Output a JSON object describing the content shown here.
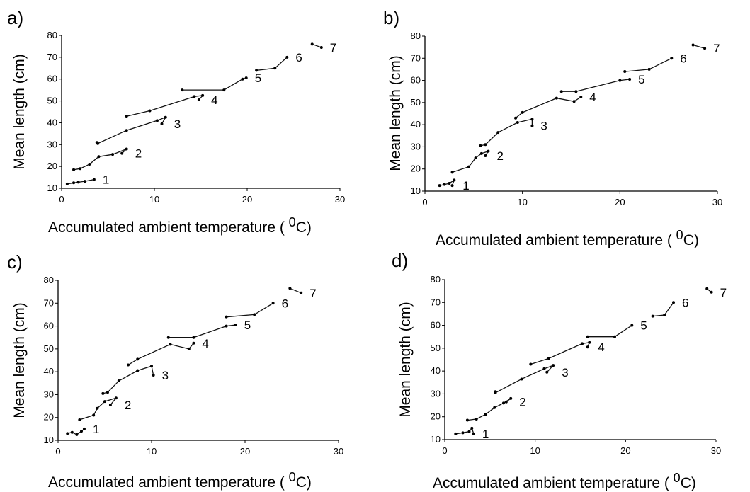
{
  "chart_data": [
    {
      "type": "line",
      "label": "a)",
      "xlabel": "Accumulated ambient temperature",
      "xunit": "0C",
      "ylabel": "Mean length (cm)",
      "xlim": [
        0,
        30
      ],
      "ylim": [
        10,
        80
      ],
      "xticks": [
        0,
        10,
        20,
        30
      ],
      "yticks": [
        10,
        20,
        30,
        40,
        50,
        60,
        70,
        80
      ],
      "series": [
        {
          "name": "1",
          "points": [
            [
              0.6,
              12
            ],
            [
              1.3,
              12.5
            ],
            [
              1.8,
              12.8
            ],
            [
              2.5,
              13.2
            ],
            [
              3.5,
              14
            ]
          ]
        },
        {
          "name": "2",
          "points": [
            [
              1.3,
              18.5
            ],
            [
              2,
              19
            ],
            [
              3,
              21
            ],
            [
              4,
              24.5
            ],
            [
              5.5,
              25.5
            ],
            [
              7,
              28
            ],
            [
              6.5,
              26
            ]
          ]
        },
        {
          "name": "3",
          "points": [
            [
              3.8,
              31
            ],
            [
              3.9,
              30.5
            ],
            [
              7,
              36.5
            ],
            [
              10.3,
              41
            ],
            [
              11.2,
              42.5
            ],
            [
              10.8,
              39.5
            ]
          ]
        },
        {
          "name": "4",
          "points": [
            [
              7,
              43
            ],
            [
              9.5,
              45.5
            ],
            [
              14.3,
              52
            ],
            [
              15.2,
              52.5
            ],
            [
              14.8,
              50.5
            ]
          ]
        },
        {
          "name": "5",
          "points": [
            [
              13,
              55
            ],
            [
              17.5,
              55
            ],
            [
              19.5,
              60
            ],
            [
              19.9,
              60.5
            ]
          ]
        },
        {
          "name": "6",
          "points": [
            [
              21,
              64
            ],
            [
              23,
              65
            ],
            [
              24.3,
              70
            ]
          ]
        },
        {
          "name": "7",
          "points": [
            [
              27,
              76
            ],
            [
              28,
              74.5
            ]
          ]
        }
      ]
    },
    {
      "type": "line",
      "label": "b)",
      "xlabel": "Accumulated ambient temperature",
      "xunit": "0C",
      "ylabel": "Mean length (cm)",
      "xlim": [
        0,
        30
      ],
      "ylim": [
        10,
        80
      ],
      "xticks": [
        0,
        10,
        20,
        30
      ],
      "yticks": [
        10,
        20,
        30,
        40,
        50,
        60,
        70,
        80
      ],
      "series": [
        {
          "name": "1",
          "points": [
            [
              1.5,
              12.5
            ],
            [
              2,
              13
            ],
            [
              2.5,
              13.5
            ],
            [
              3,
              15
            ],
            [
              2.8,
              12.5
            ]
          ]
        },
        {
          "name": "2",
          "points": [
            [
              2.8,
              18.5
            ],
            [
              4.5,
              21
            ],
            [
              5.2,
              25
            ],
            [
              5.8,
              27
            ],
            [
              6.5,
              28
            ],
            [
              6.2,
              26
            ]
          ]
        },
        {
          "name": "3",
          "points": [
            [
              5.7,
              30.5
            ],
            [
              6.2,
              31
            ],
            [
              7.5,
              36.5
            ],
            [
              9.5,
              41
            ],
            [
              11,
              42.5
            ],
            [
              11,
              39.5
            ]
          ]
        },
        {
          "name": "4",
          "points": [
            [
              9.3,
              43
            ],
            [
              10,
              45.5
            ],
            [
              13.5,
              52
            ],
            [
              15.3,
              50.5
            ],
            [
              16,
              52.5
            ]
          ]
        },
        {
          "name": "5",
          "points": [
            [
              14,
              55
            ],
            [
              15.5,
              55
            ],
            [
              20,
              60
            ],
            [
              21,
              60.5
            ]
          ]
        },
        {
          "name": "6",
          "points": [
            [
              20.5,
              64
            ],
            [
              23,
              65
            ],
            [
              25.3,
              70
            ]
          ]
        },
        {
          "name": "7",
          "points": [
            [
              27.5,
              76
            ],
            [
              28.7,
              74.5
            ]
          ]
        }
      ]
    },
    {
      "type": "line",
      "label": "c)",
      "xlabel": "Accumulated ambient temperature",
      "xunit": "0C",
      "ylabel": "Mean length (cm)",
      "xlim": [
        0,
        30
      ],
      "ylim": [
        10,
        80
      ],
      "xticks": [
        0,
        10,
        20,
        30
      ],
      "yticks": [
        10,
        20,
        30,
        40,
        50,
        60,
        70,
        80
      ],
      "series": [
        {
          "name": "1",
          "points": [
            [
              1,
              13
            ],
            [
              1.5,
              13.5
            ],
            [
              2,
              12.5
            ],
            [
              2.5,
              14
            ],
            [
              2.8,
              15
            ]
          ]
        },
        {
          "name": "2",
          "points": [
            [
              2.3,
              19
            ],
            [
              3.8,
              21
            ],
            [
              4.2,
              24
            ],
            [
              5,
              27
            ],
            [
              6.2,
              28.5
            ],
            [
              5.6,
              25.5
            ]
          ]
        },
        {
          "name": "3",
          "points": [
            [
              4.8,
              30.5
            ],
            [
              5.3,
              31
            ],
            [
              6.5,
              36
            ],
            [
              8.5,
              40.5
            ],
            [
              10,
              42.5
            ],
            [
              10.2,
              38.5
            ]
          ]
        },
        {
          "name": "4",
          "points": [
            [
              7.5,
              43
            ],
            [
              8.5,
              45.5
            ],
            [
              12,
              52
            ],
            [
              14,
              50
            ],
            [
              14.5,
              52.5
            ]
          ]
        },
        {
          "name": "5",
          "points": [
            [
              11.8,
              55
            ],
            [
              14.5,
              55
            ],
            [
              18,
              60
            ],
            [
              19,
              60.5
            ]
          ]
        },
        {
          "name": "6",
          "points": [
            [
              18,
              64
            ],
            [
              21,
              65
            ],
            [
              23,
              70
            ]
          ]
        },
        {
          "name": "7",
          "points": [
            [
              24.8,
              76.5
            ],
            [
              26,
              74.5
            ]
          ]
        }
      ]
    },
    {
      "type": "line",
      "label": "d)",
      "xlabel": "Accumulated ambient temperature",
      "xunit": "0C",
      "ylabel": "Mean length (cm)",
      "xlim": [
        0,
        30
      ],
      "ylim": [
        10,
        80
      ],
      "xticks": [
        0,
        10,
        20,
        30
      ],
      "yticks": [
        10,
        20,
        30,
        40,
        50,
        60,
        70,
        80
      ],
      "series": [
        {
          "name": "1",
          "points": [
            [
              1.2,
              12.5
            ],
            [
              2,
              13
            ],
            [
              2.7,
              13.5
            ],
            [
              3,
              15
            ],
            [
              3.2,
              12.5
            ]
          ]
        },
        {
          "name": "2",
          "points": [
            [
              2.5,
              18.5
            ],
            [
              3.5,
              19
            ],
            [
              4.5,
              21
            ],
            [
              5.5,
              24
            ],
            [
              6.5,
              26
            ],
            [
              7.3,
              28
            ],
            [
              6.8,
              26.5
            ]
          ]
        },
        {
          "name": "3",
          "points": [
            [
              5.6,
              31
            ],
            [
              5.6,
              30.5
            ],
            [
              8.5,
              36.5
            ],
            [
              11,
              41
            ],
            [
              12,
              42.5
            ],
            [
              11.3,
              39.5
            ]
          ]
        },
        {
          "name": "4",
          "points": [
            [
              9.5,
              43
            ],
            [
              11.5,
              45.5
            ],
            [
              15.2,
              52
            ],
            [
              16,
              52.5
            ],
            [
              15.8,
              50.5
            ]
          ]
        },
        {
          "name": "5",
          "points": [
            [
              15.8,
              55
            ],
            [
              18.8,
              55
            ],
            [
              20.7,
              60
            ]
          ]
        },
        {
          "name": "6",
          "points": [
            [
              23,
              64
            ],
            [
              24.3,
              64.5
            ],
            [
              25.3,
              70
            ]
          ]
        },
        {
          "name": "7",
          "points": [
            [
              29,
              76
            ],
            [
              29.5,
              74.5
            ]
          ]
        }
      ]
    }
  ]
}
